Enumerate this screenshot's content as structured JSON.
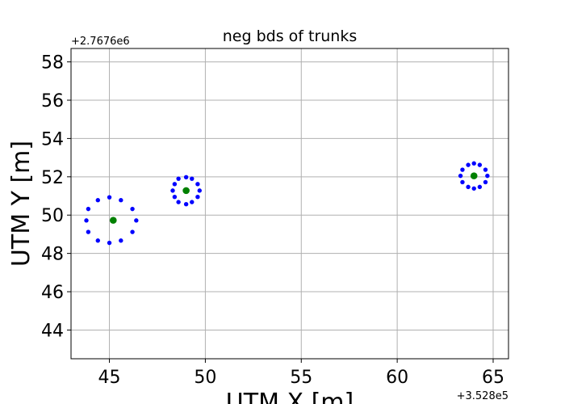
{
  "chart_data": {
    "type": "scatter",
    "title": "neg bds of trunks",
    "xlabel": "UTM X [m]",
    "ylabel": "UTM Y [m]",
    "x_offset_label": "+3.528e5",
    "y_offset_label": "+2.7676e6",
    "xlim": [
      43.0,
      65.8
    ],
    "ylim": [
      42.5,
      58.7
    ],
    "x_ticks": [
      45,
      50,
      55,
      60,
      65
    ],
    "y_ticks": [
      44,
      46,
      48,
      50,
      52,
      54,
      56,
      58
    ],
    "grid": true,
    "colors": {
      "boundary": "#0000ff",
      "center": "#008000",
      "grid": "#b0b0b0"
    },
    "series": [
      {
        "role": "boundary",
        "points": [
          [
            46.4,
            49.72
          ],
          [
            46.2,
            50.32
          ],
          [
            45.6,
            50.78
          ],
          [
            45.0,
            50.93
          ],
          [
            44.4,
            50.78
          ],
          [
            43.9,
            50.32
          ],
          [
            43.8,
            49.72
          ],
          [
            43.9,
            49.12
          ],
          [
            44.4,
            48.67
          ],
          [
            45.0,
            48.55
          ],
          [
            45.6,
            48.67
          ],
          [
            46.2,
            49.12
          ],
          [
            49.7,
            51.28
          ],
          [
            49.6,
            51.62
          ],
          [
            49.3,
            51.9
          ],
          [
            49.0,
            51.98
          ],
          [
            48.6,
            51.9
          ],
          [
            48.4,
            51.62
          ],
          [
            48.3,
            51.28
          ],
          [
            48.4,
            50.95
          ],
          [
            48.6,
            50.68
          ],
          [
            49.0,
            50.57
          ],
          [
            49.3,
            50.68
          ],
          [
            49.6,
            50.95
          ],
          [
            64.7,
            52.05
          ],
          [
            64.6,
            52.37
          ],
          [
            64.3,
            52.62
          ],
          [
            64.0,
            52.7
          ],
          [
            63.7,
            52.62
          ],
          [
            63.4,
            52.37
          ],
          [
            63.3,
            52.05
          ],
          [
            63.4,
            51.72
          ],
          [
            63.7,
            51.47
          ],
          [
            64.0,
            51.39
          ],
          [
            64.3,
            51.47
          ],
          [
            64.6,
            51.72
          ]
        ]
      },
      {
        "role": "center",
        "points": [
          [
            45.2,
            49.73
          ],
          [
            49.0,
            51.28
          ],
          [
            64.0,
            52.05
          ]
        ]
      }
    ]
  }
}
